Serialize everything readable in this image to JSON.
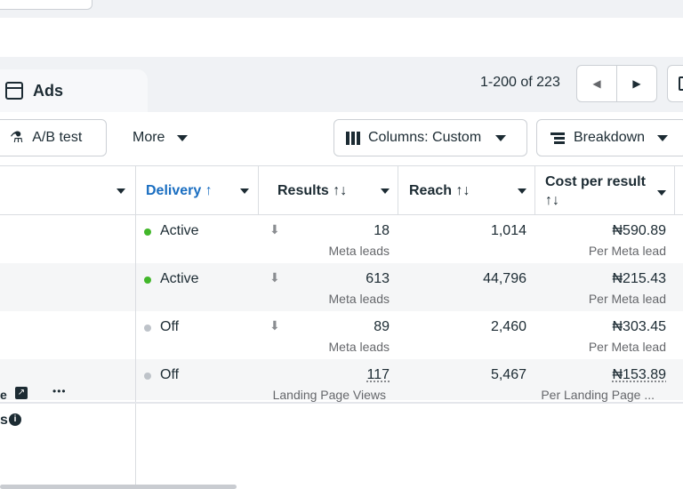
{
  "tab": {
    "label": "Ads",
    "icon": "ad-window-icon"
  },
  "pagination": {
    "range": "1-200 of 223",
    "prev_icon": "chevron-left-icon",
    "next_icon": "chevron-right-icon"
  },
  "toolbar": {
    "ab_test_label": "A/B test",
    "more_label": "More",
    "columns_label": "Columns: Custom",
    "breakdown_label": "Breakdown"
  },
  "columns": {
    "delivery": "Delivery ↑",
    "results": "Results ↑↓",
    "reach": "Reach ↑↓",
    "cost_line1": "Cost per result",
    "cost_line2": "↑↓"
  },
  "colors": {
    "accent": "#1877f2",
    "delivery_header": "#1a6ec1",
    "active": "#42b72a",
    "off": "#bec3c9"
  },
  "rows": [
    {
      "status": "Active",
      "results": "18",
      "results_type": "Meta leads",
      "reach": "1,014",
      "cost": "₦590.89",
      "cost_type": "Per Meta lead"
    },
    {
      "status": "Active",
      "results": "613",
      "results_type": "Meta leads",
      "reach": "44,796",
      "cost": "₦215.43",
      "cost_type": "Per Meta lead"
    },
    {
      "status": "Off",
      "results": "89",
      "results_type": "Meta leads",
      "reach": "2,460",
      "cost": "₦303.45",
      "cost_type": "Per Meta lead"
    },
    {
      "status": "Off",
      "results": "117",
      "results_type": "Landing Page Views",
      "reach": "5,467",
      "cost": "₦153.89",
      "cost_type": "Per Landing Page ..."
    }
  ],
  "row_actions": {
    "more": "•••"
  },
  "footer": {
    "partial_text": "s"
  }
}
